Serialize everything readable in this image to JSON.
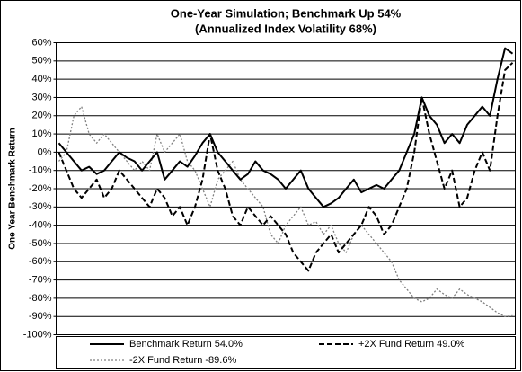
{
  "chart_data": {
    "type": "line",
    "title": "One-Year Simulation; Benchmark Up 54%",
    "subtitle": "(Annualized Index Volatility 68%)",
    "y_label": "One Year Benchmark Return",
    "ylim": [
      -100,
      60
    ],
    "yticks": [
      {
        "value": -100,
        "label": "-100%"
      },
      {
        "value": -90,
        "label": "-90%"
      },
      {
        "value": -80,
        "label": "-80%"
      },
      {
        "value": -70,
        "label": "-70%"
      },
      {
        "value": -60,
        "label": "-60%"
      },
      {
        "value": -50,
        "label": "-50%"
      },
      {
        "value": -40,
        "label": "-40%"
      },
      {
        "value": -30,
        "label": "-30%"
      },
      {
        "value": -20,
        "label": "-20%"
      },
      {
        "value": -10,
        "label": "-10%"
      },
      {
        "value": 0,
        "label": "0%"
      },
      {
        "value": 10,
        "label": "10%"
      },
      {
        "value": 20,
        "label": "20%"
      },
      {
        "value": 30,
        "label": "30%"
      },
      {
        "value": 40,
        "label": "40%"
      },
      {
        "value": 50,
        "label": "50%"
      },
      {
        "value": 60,
        "label": "60%"
      }
    ],
    "grid": true,
    "legend": "bottom",
    "series": [
      {
        "name": "Benchmark Return 54.0%",
        "color": "#000000",
        "style": "solid",
        "values": [
          5,
          0,
          -5,
          -10,
          -8,
          -12,
          -10,
          -5,
          0,
          -3,
          -5,
          -10,
          -5,
          0,
          -15,
          -10,
          -5,
          -8,
          -2,
          5,
          10,
          0,
          -5,
          -10,
          -15,
          -12,
          -5,
          -10,
          -12,
          -15,
          -20,
          -15,
          -10,
          -20,
          -25,
          -30,
          -28,
          -25,
          -20,
          -15,
          -22,
          -20,
          -18,
          -20,
          -15,
          -10,
          0,
          10,
          30,
          20,
          15,
          5,
          10,
          5,
          15,
          20,
          25,
          20,
          40,
          57,
          54
        ]
      },
      {
        "name": "+2X Fund Return 49.0%",
        "color": "#000000",
        "style": "dashed",
        "values": [
          0,
          -10,
          -20,
          -25,
          -20,
          -15,
          -25,
          -20,
          -10,
          -15,
          -20,
          -25,
          -30,
          -20,
          -25,
          -35,
          -30,
          -40,
          -30,
          -15,
          10,
          -10,
          -20,
          -35,
          -40,
          -30,
          -35,
          -40,
          -35,
          -40,
          -45,
          -55,
          -60,
          -65,
          -55,
          -50,
          -45,
          -55,
          -50,
          -45,
          -40,
          -30,
          -35,
          -45,
          -40,
          -30,
          -20,
          0,
          30,
          10,
          -5,
          -20,
          -10,
          -30,
          -25,
          -10,
          0,
          -10,
          20,
          45,
          49
        ]
      },
      {
        "name": "-2X Fund Return -89.6%",
        "color": "#808080",
        "style": "dotted",
        "values": [
          -5,
          0,
          20,
          25,
          10,
          5,
          10,
          5,
          0,
          -5,
          -10,
          -5,
          -10,
          10,
          0,
          5,
          10,
          -5,
          -10,
          -20,
          -30,
          -15,
          -10,
          -5,
          -15,
          -20,
          -25,
          -30,
          -45,
          -50,
          -40,
          -35,
          -30,
          -40,
          -38,
          -45,
          -40,
          -50,
          -55,
          -45,
          -40,
          -45,
          -50,
          -55,
          -60,
          -70,
          -75,
          -80,
          -82,
          -80,
          -75,
          -78,
          -80,
          -75,
          -78,
          -80,
          -82,
          -85,
          -88,
          -90,
          -89.6
        ]
      }
    ]
  }
}
